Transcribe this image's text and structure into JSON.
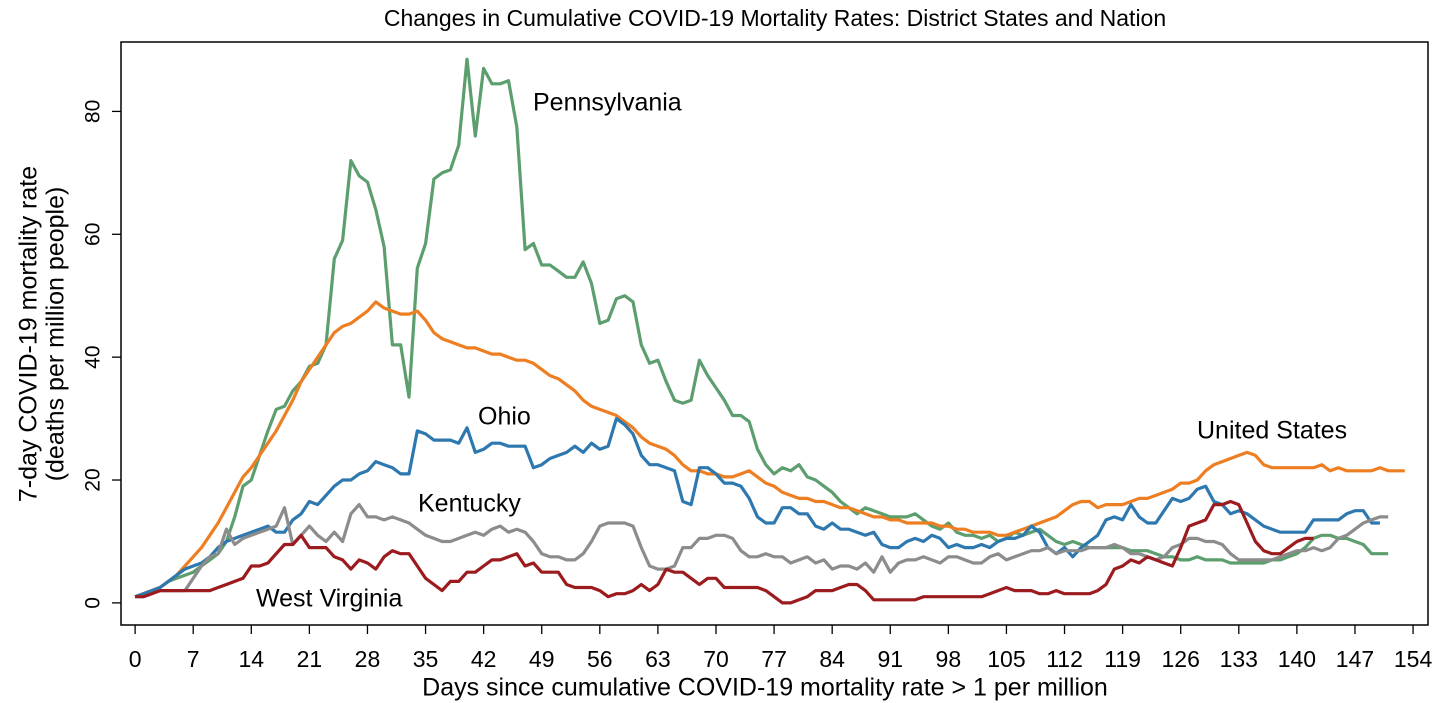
{
  "chart_data": {
    "type": "line",
    "title": "Changes in Cumulative COVID-19 Mortality Rates: District States and Nation",
    "xlabel": "Days since cumulative COVID-19 mortality rate > 1 per million",
    "ylabel": [
      "7-day COVID-19 mortality rate",
      "(deaths per million people)"
    ],
    "xlim": [
      -1.7,
      155.8
    ],
    "ylim": [
      -3.6,
      91.3
    ],
    "xticks": [
      0,
      7,
      14,
      21,
      28,
      35,
      42,
      49,
      56,
      63,
      70,
      77,
      84,
      91,
      98,
      105,
      112,
      119,
      126,
      133,
      140,
      147,
      154
    ],
    "yticks": [
      0,
      20,
      40,
      60,
      80
    ],
    "grid": false,
    "x": [
      0,
      1,
      2,
      3,
      4,
      5,
      6,
      7,
      8,
      9,
      10,
      11,
      12,
      13,
      14,
      15,
      16,
      17,
      18,
      19,
      20,
      21,
      22,
      23,
      24,
      25,
      26,
      27,
      28,
      29,
      30,
      31,
      32,
      33,
      34,
      35,
      36,
      37,
      38,
      39,
      40,
      41,
      42,
      43,
      44,
      45,
      46,
      47,
      48,
      49,
      50,
      51,
      52,
      53,
      54,
      55,
      56,
      57,
      58,
      59,
      60,
      61,
      62,
      63,
      64,
      65,
      66,
      67,
      68,
      69,
      70,
      71,
      72,
      73,
      74,
      75,
      76,
      77,
      78,
      79,
      80,
      81,
      82,
      83,
      84,
      85,
      86,
      87,
      88,
      89,
      90,
      91,
      92,
      93,
      94,
      95,
      96,
      97,
      98,
      99,
      100,
      101,
      102,
      103,
      104,
      105,
      106,
      107,
      108,
      109,
      110,
      111,
      112,
      113,
      114,
      115,
      116,
      117,
      118,
      119,
      120,
      121,
      122,
      123,
      124,
      125,
      126,
      127,
      128,
      129,
      130,
      131,
      132,
      133,
      134,
      135,
      136,
      137,
      138,
      139,
      140,
      141,
      142,
      143,
      144,
      145,
      146,
      147,
      148,
      149,
      150,
      151,
      152,
      153
    ],
    "series": [
      {
        "name": "Pennsylvania",
        "color": "#5c9e6e",
        "values": [
          1,
          1.5,
          2,
          2.5,
          3.5,
          4,
          4.5,
          5,
          6,
          7,
          8,
          10,
          14,
          19,
          20,
          24,
          28,
          31.5,
          32,
          34.5,
          36,
          38.5,
          39,
          42,
          56,
          59,
          72,
          69.5,
          68.5,
          64,
          58,
          42,
          42,
          33.5,
          54.5,
          58.5,
          69,
          70,
          70.5,
          74.5,
          88.5,
          76,
          87,
          84.5,
          84.5,
          85,
          77.5,
          57.5,
          58.5,
          55,
          55,
          54,
          53,
          53,
          55.5,
          52,
          45.5,
          46,
          49.5,
          50,
          49,
          42,
          39,
          39.5,
          36,
          33,
          32.5,
          33,
          39.5,
          37,
          35,
          33,
          30.5,
          30.5,
          29.5,
          25,
          22.5,
          21,
          22,
          21.5,
          22.5,
          20.5,
          20,
          19,
          18,
          16.5,
          15.5,
          14.5,
          15.5,
          15,
          14.5,
          14,
          14,
          14,
          14.5,
          13.5,
          12.5,
          12,
          13,
          11.5,
          11,
          11,
          10.5,
          11,
          10,
          10.5,
          11.5,
          11,
          11.5,
          12,
          11,
          10,
          9.5,
          10,
          9.5,
          9,
          9,
          9,
          9,
          9,
          8.5,
          8.5,
          8.5,
          8,
          7.5,
          7.5,
          7,
          7,
          7.5,
          7,
          7,
          7,
          6.5,
          6.5,
          6.5,
          6.5,
          6.5,
          7,
          7,
          7.5,
          8,
          9,
          10.5,
          11,
          11,
          10.5,
          10.5,
          10,
          9.5,
          8,
          8,
          8,
          null,
          null
        ]
      },
      {
        "name": "United States",
        "color": "#ee7e22",
        "values": [
          1,
          1.5,
          2,
          2.5,
          3.5,
          4.5,
          6,
          7.5,
          9,
          11,
          13,
          15.5,
          18,
          20.5,
          22,
          24,
          26,
          28,
          30.5,
          33,
          36,
          38,
          40,
          42,
          44,
          45,
          45.5,
          46.5,
          47.5,
          49,
          48,
          47.5,
          47,
          47,
          47.5,
          46,
          44,
          43,
          42.5,
          42,
          41.5,
          41.5,
          41,
          40.5,
          40.5,
          40,
          39.5,
          39.5,
          39,
          38,
          37,
          36.5,
          35.5,
          34.5,
          33,
          32,
          31.5,
          31,
          30.5,
          29.5,
          28.5,
          27,
          26,
          25.5,
          25,
          24,
          22.5,
          21.5,
          21.5,
          21,
          21,
          20.5,
          20.5,
          21,
          21.5,
          20.5,
          19.5,
          19,
          18,
          17.5,
          17,
          17,
          16.5,
          16.5,
          16,
          15.5,
          15.5,
          15,
          14.5,
          14,
          14,
          13.5,
          13.5,
          13,
          13,
          13,
          13,
          12.5,
          12.5,
          12,
          12,
          11.5,
          11.5,
          11.5,
          11,
          11,
          11.5,
          12,
          12.5,
          13,
          13.5,
          14,
          15,
          16,
          16.5,
          16.5,
          15.5,
          16,
          16,
          16,
          16.5,
          17,
          17,
          17.5,
          18,
          18.5,
          19.5,
          19.5,
          20,
          21.5,
          22.5,
          23,
          23.5,
          24,
          24.5,
          24,
          22.5,
          22,
          22,
          22,
          22,
          22,
          22,
          22.5,
          21.5,
          22,
          21.5,
          21.5,
          21.5,
          21.5,
          22,
          21.5,
          21.5,
          21.5
        ]
      },
      {
        "name": "Ohio",
        "color": "#2e78b0",
        "values": [
          1,
          1.5,
          2,
          2.5,
          3.5,
          4.5,
          5.5,
          6,
          6.5,
          7.5,
          9,
          10,
          10.5,
          11,
          11.5,
          12,
          12.5,
          11.5,
          11.5,
          13.5,
          14.5,
          16.5,
          16,
          17.5,
          19,
          20,
          20,
          21,
          21.5,
          23,
          22.5,
          22,
          21,
          21,
          28,
          27.5,
          26.5,
          26.5,
          26.5,
          26,
          28.5,
          24.5,
          25,
          26,
          26,
          25.5,
          25.5,
          25.5,
          22,
          22.5,
          23.5,
          24,
          24.5,
          25.5,
          24.5,
          26,
          25,
          25.5,
          30,
          29,
          27.5,
          24,
          22.5,
          22.5,
          22,
          21.5,
          16.5,
          16,
          22,
          22,
          21,
          19.5,
          19.5,
          19,
          17,
          14,
          13,
          13,
          15.5,
          15.5,
          14.5,
          14.5,
          12.5,
          12,
          13,
          12,
          12,
          11.5,
          11,
          11.5,
          9.5,
          9,
          9,
          10,
          10.5,
          10,
          11,
          10.5,
          9,
          9.5,
          9,
          9,
          9.5,
          9,
          10,
          10.5,
          10.5,
          11,
          12.5,
          11.5,
          9,
          8,
          9,
          7.5,
          9,
          10,
          11,
          13.5,
          14,
          13.5,
          16,
          14,
          13,
          13,
          15,
          17,
          16.5,
          17,
          18.5,
          19,
          16.5,
          16,
          14.5,
          15,
          14.5,
          13.5,
          12.5,
          12,
          11.5,
          11.5,
          11.5,
          11.5,
          13.5,
          13.5,
          13.5,
          13.5,
          14.5,
          15,
          15,
          13,
          13,
          null,
          null,
          null
        ]
      },
      {
        "name": "Kentucky",
        "color": "#8c8c8c",
        "values": [
          1,
          1,
          1.5,
          2,
          2,
          2,
          2,
          4,
          6,
          7.5,
          8,
          12,
          9.5,
          10.5,
          11,
          11.5,
          12,
          12.5,
          15.5,
          9.5,
          11,
          12.5,
          11,
          10,
          11.5,
          10,
          14.5,
          16,
          14,
          14,
          13.5,
          14,
          13.5,
          13,
          12,
          11,
          10.5,
          10,
          10,
          10.5,
          11,
          11.5,
          11,
          12,
          12.5,
          11.5,
          12,
          11.5,
          10,
          8,
          7.5,
          7.5,
          7,
          7,
          8,
          10,
          12.5,
          13,
          13,
          13,
          12.5,
          9,
          6,
          5.5,
          5.5,
          6,
          9,
          9,
          10.5,
          10.5,
          11,
          11,
          10.5,
          8.5,
          7.5,
          7.5,
          8,
          7.5,
          7.5,
          6.5,
          7,
          7.5,
          6.5,
          7,
          5.5,
          6,
          6,
          5.5,
          6.5,
          5,
          7.5,
          5,
          6.5,
          7,
          7,
          7.5,
          7,
          6.5,
          7.5,
          7.5,
          7,
          6.5,
          6.5,
          7.5,
          8,
          7,
          7.5,
          8,
          8.5,
          8.5,
          9,
          8,
          8.5,
          8.5,
          8.5,
          9,
          9,
          9,
          9.5,
          9,
          8,
          8,
          7.5,
          7,
          7.5,
          9,
          9.5,
          10.5,
          10.5,
          10,
          10,
          9.5,
          8,
          7,
          7,
          7,
          7,
          7,
          7.5,
          8,
          8.5,
          8.5,
          9,
          8.5,
          9,
          10.5,
          11,
          12,
          13,
          13.5,
          14,
          14,
          null,
          null
        ]
      },
      {
        "name": "West Virginia",
        "color": "#9b1b1e",
        "values": [
          1,
          1,
          1.5,
          2,
          2,
          2,
          2,
          2,
          2,
          2,
          2.5,
          3,
          3.5,
          4,
          6,
          6,
          6.5,
          8,
          9.5,
          9.5,
          11,
          9,
          9,
          9,
          7.5,
          7,
          5.5,
          7,
          6.5,
          5.5,
          7.5,
          8.5,
          8,
          8,
          6,
          4,
          3,
          2,
          3.5,
          3.5,
          5,
          5,
          6,
          7,
          7,
          7.5,
          8,
          6,
          6.5,
          5,
          5,
          5,
          3,
          2.5,
          2.5,
          2.5,
          2,
          1,
          1.5,
          1.5,
          2,
          3,
          2,
          3,
          5.5,
          5,
          5,
          4,
          3,
          4,
          4,
          2.5,
          2.5,
          2.5,
          2.5,
          2.5,
          2,
          1,
          0,
          0,
          0.5,
          1,
          2,
          2,
          2,
          2.5,
          3,
          3,
          2,
          0.5,
          0.5,
          0.5,
          0.5,
          0.5,
          0.5,
          1,
          1,
          1,
          1,
          1,
          1,
          1,
          1,
          1.5,
          2,
          2.5,
          2,
          2,
          2,
          1.5,
          1.5,
          2,
          1.5,
          1.5,
          1.5,
          1.5,
          2,
          3,
          5.5,
          6,
          7,
          6.5,
          7.5,
          7,
          6.5,
          6,
          9,
          12.5,
          13,
          13.5,
          16,
          16,
          16.5,
          16,
          13,
          10,
          8.5,
          8,
          8,
          9,
          10,
          10.5,
          10.5,
          null,
          null,
          null,
          null,
          null,
          null,
          null,
          null,
          null,
          null,
          null
        ]
      }
    ]
  }
}
